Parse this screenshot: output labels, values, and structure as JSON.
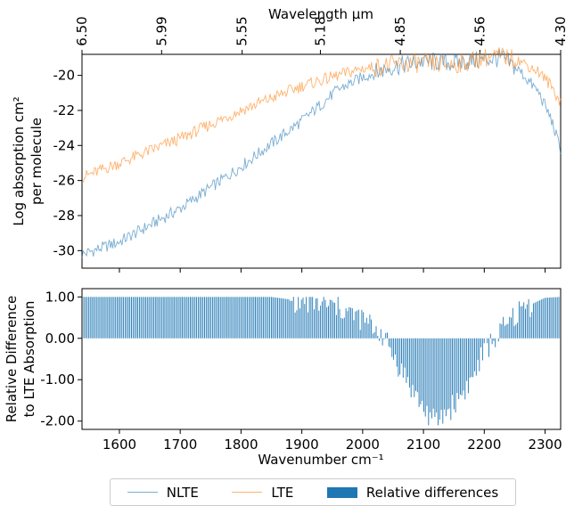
{
  "colors": {
    "nlte": "#1f77b4",
    "lte": "#ff7f0e",
    "bars": "#1f77b4"
  },
  "chart_data": [
    {
      "type": "line",
      "title": "",
      "xlabel": "Wavenumber cm⁻¹",
      "ylabel_line1": "Log absorption cm²",
      "ylabel_line2": "per molecule",
      "top_axis_label": "Wavelength μm",
      "top_ticks": [
        {
          "wavenumber": 1538.5,
          "label": "6.50"
        },
        {
          "wavenumber": 1669.4,
          "label": "5.99"
        },
        {
          "wavenumber": 1801.8,
          "label": "5.55"
        },
        {
          "wavenumber": 1930.5,
          "label": "5.18"
        },
        {
          "wavenumber": 2061.9,
          "label": "4.85"
        },
        {
          "wavenumber": 2192.9,
          "label": "4.56"
        },
        {
          "wavenumber": 2325.6,
          "label": "4.30"
        }
      ],
      "xlim": [
        1538.5,
        2325.6
      ],
      "ylim": [
        -31,
        -18.8
      ],
      "yticks": [
        "-30",
        "-28",
        "-26",
        "-24",
        "-22",
        "-20"
      ],
      "series": [
        {
          "name": "NLTE",
          "x": [
            1540,
            1600,
            1700,
            1800,
            1900,
            1960,
            2000,
            2050,
            2100,
            2150,
            2200,
            2230,
            2260,
            2290,
            2310,
            2325
          ],
          "y": [
            -30.2,
            -29.5,
            -27.6,
            -25.2,
            -22.6,
            -20.8,
            -20.1,
            -19.5,
            -19.2,
            -19.3,
            -19.1,
            -19.0,
            -19.8,
            -21.0,
            -22.5,
            -24.2
          ]
        },
        {
          "name": "LTE",
          "x": [
            1540,
            1600,
            1700,
            1800,
            1900,
            1960,
            2000,
            2050,
            2100,
            2150,
            2200,
            2230,
            2260,
            2290,
            2310,
            2325
          ],
          "y": [
            -25.8,
            -25.0,
            -23.6,
            -22.0,
            -20.6,
            -20.0,
            -19.6,
            -19.4,
            -19.3,
            -19.4,
            -19.0,
            -18.9,
            -19.2,
            -19.8,
            -20.6,
            -21.5
          ]
        }
      ]
    },
    {
      "type": "bar",
      "name": "Relative differences",
      "xlabel": "Wavenumber cm⁻¹",
      "ylabel_line1": "Relative Difference",
      "ylabel_line2": "to LTE Absorption",
      "xlim": [
        1538.5,
        2325.6
      ],
      "ylim": [
        -2.2,
        1.2
      ],
      "yticks": [
        "-2.00",
        "-1.00",
        "0.00",
        "1.00"
      ],
      "xticks": [
        "1600",
        "1700",
        "1800",
        "1900",
        "2000",
        "2100",
        "2200",
        "2300"
      ],
      "profile": {
        "x": [
          1540,
          1850,
          1900,
          1960,
          2000,
          2030,
          2050,
          2080,
          2100,
          2120,
          2150,
          2180,
          2200,
          2230,
          2260,
          2300,
          2325
        ],
        "y": [
          1.0,
          1.0,
          0.9,
          0.75,
          0.45,
          0.15,
          -0.4,
          -1.2,
          -1.7,
          -2.05,
          -1.6,
          -1.0,
          -0.3,
          0.2,
          0.7,
          0.98,
          1.0
        ]
      }
    }
  ],
  "legend": {
    "nlte_label": "NLTE",
    "lte_label": "LTE",
    "bars_label": "Relative differences"
  }
}
